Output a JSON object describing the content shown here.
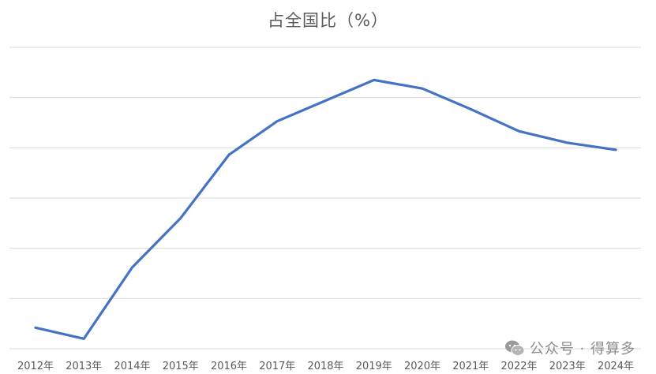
{
  "chart_data": {
    "type": "line",
    "title": "占全国比（%）",
    "xlabel": "",
    "ylabel": "",
    "categories": [
      "2012年",
      "2013年",
      "2014年",
      "2015年",
      "2016年",
      "2017年",
      "2018年",
      "2019年",
      "2020年",
      "2021年",
      "2022年",
      "2023年",
      "2024年"
    ],
    "series": [
      {
        "values": [
          0.42,
          0.2,
          1.62,
          2.6,
          3.86,
          4.53,
          4.94,
          5.35,
          5.18,
          4.77,
          4.33,
          4.1,
          3.96
        ]
      }
    ],
    "ylim": [
      0,
      6
    ],
    "grid": true,
    "color": "#4472C4"
  },
  "watermark": {
    "text": "公众号 · 得算多",
    "icon": "wechat-icon"
  }
}
